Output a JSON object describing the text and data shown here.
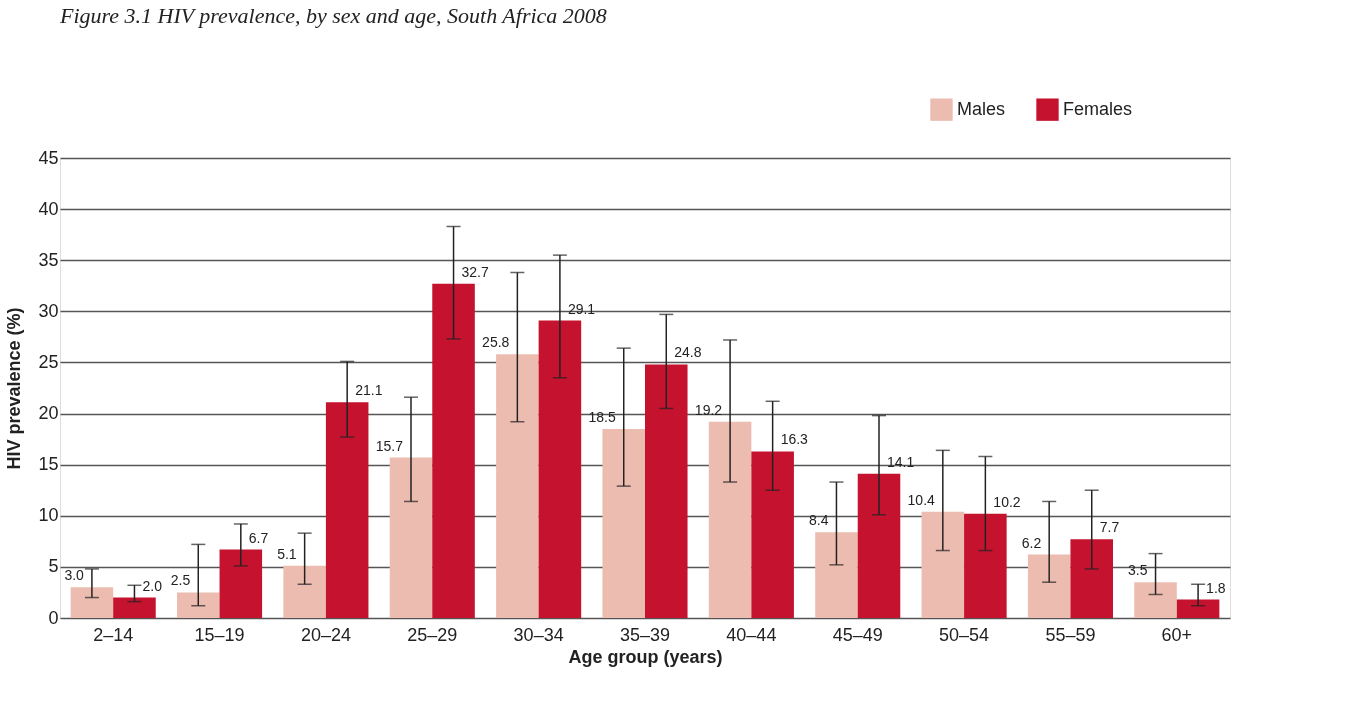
{
  "chart_data": {
    "type": "bar",
    "title": "Figure 3.1 HIV prevalence, by sex and age, South Africa 2008",
    "xlabel": "Age group (years)",
    "ylabel": "HIV prevalence (%)",
    "categories": [
      "2–14",
      "15–19",
      "20–24",
      "25–29",
      "30–34",
      "35–39",
      "40–44",
      "45–49",
      "50–54",
      "55–59",
      "60+"
    ],
    "series": [
      {
        "name": "Males",
        "color": "#ecbcb0",
        "values": [
          3.0,
          2.5,
          5.1,
          15.7,
          25.8,
          18.5,
          19.2,
          8.4,
          10.4,
          6.2,
          3.5
        ],
        "value_labels": [
          "3.0",
          "2.5",
          "5.1",
          "15.7",
          "25.8",
          "18.5",
          "19.2",
          "8.4",
          "10.4",
          "6.2",
          "3.5"
        ],
        "errors": [
          [
            2.0,
            4.8
          ],
          [
            1.2,
            7.2
          ],
          [
            3.3,
            8.3
          ],
          [
            11.4,
            21.6
          ],
          [
            19.2,
            33.8
          ],
          [
            12.9,
            26.4
          ],
          [
            13.3,
            27.2
          ],
          [
            5.2,
            13.3
          ],
          [
            6.6,
            16.4
          ],
          [
            3.5,
            11.4
          ],
          [
            2.3,
            6.3
          ]
        ]
      },
      {
        "name": "Females",
        "color": "#c4122f",
        "values": [
          2.0,
          6.7,
          21.1,
          32.7,
          29.1,
          24.8,
          16.3,
          14.1,
          10.2,
          7.7,
          1.8
        ],
        "value_labels": [
          "2.0",
          "6.7",
          "21.1",
          "32.7",
          "29.1",
          "24.8",
          "16.3",
          "14.1",
          "10.2",
          "7.7",
          "1.8"
        ],
        "errors": [
          [
            1.6,
            3.2
          ],
          [
            5.1,
            9.2
          ],
          [
            17.7,
            25.1
          ],
          [
            27.3,
            38.3
          ],
          [
            23.5,
            35.5
          ],
          [
            20.5,
            29.7
          ],
          [
            12.5,
            21.2
          ],
          [
            10.1,
            19.8
          ],
          [
            6.6,
            15.8
          ],
          [
            4.8,
            12.5
          ],
          [
            1.2,
            3.3
          ]
        ]
      }
    ],
    "ylim": [
      0,
      45
    ],
    "yticks": [
      0,
      5,
      10,
      15,
      20,
      25,
      30,
      35,
      40,
      45
    ],
    "grid": "y",
    "legend": "top right"
  }
}
